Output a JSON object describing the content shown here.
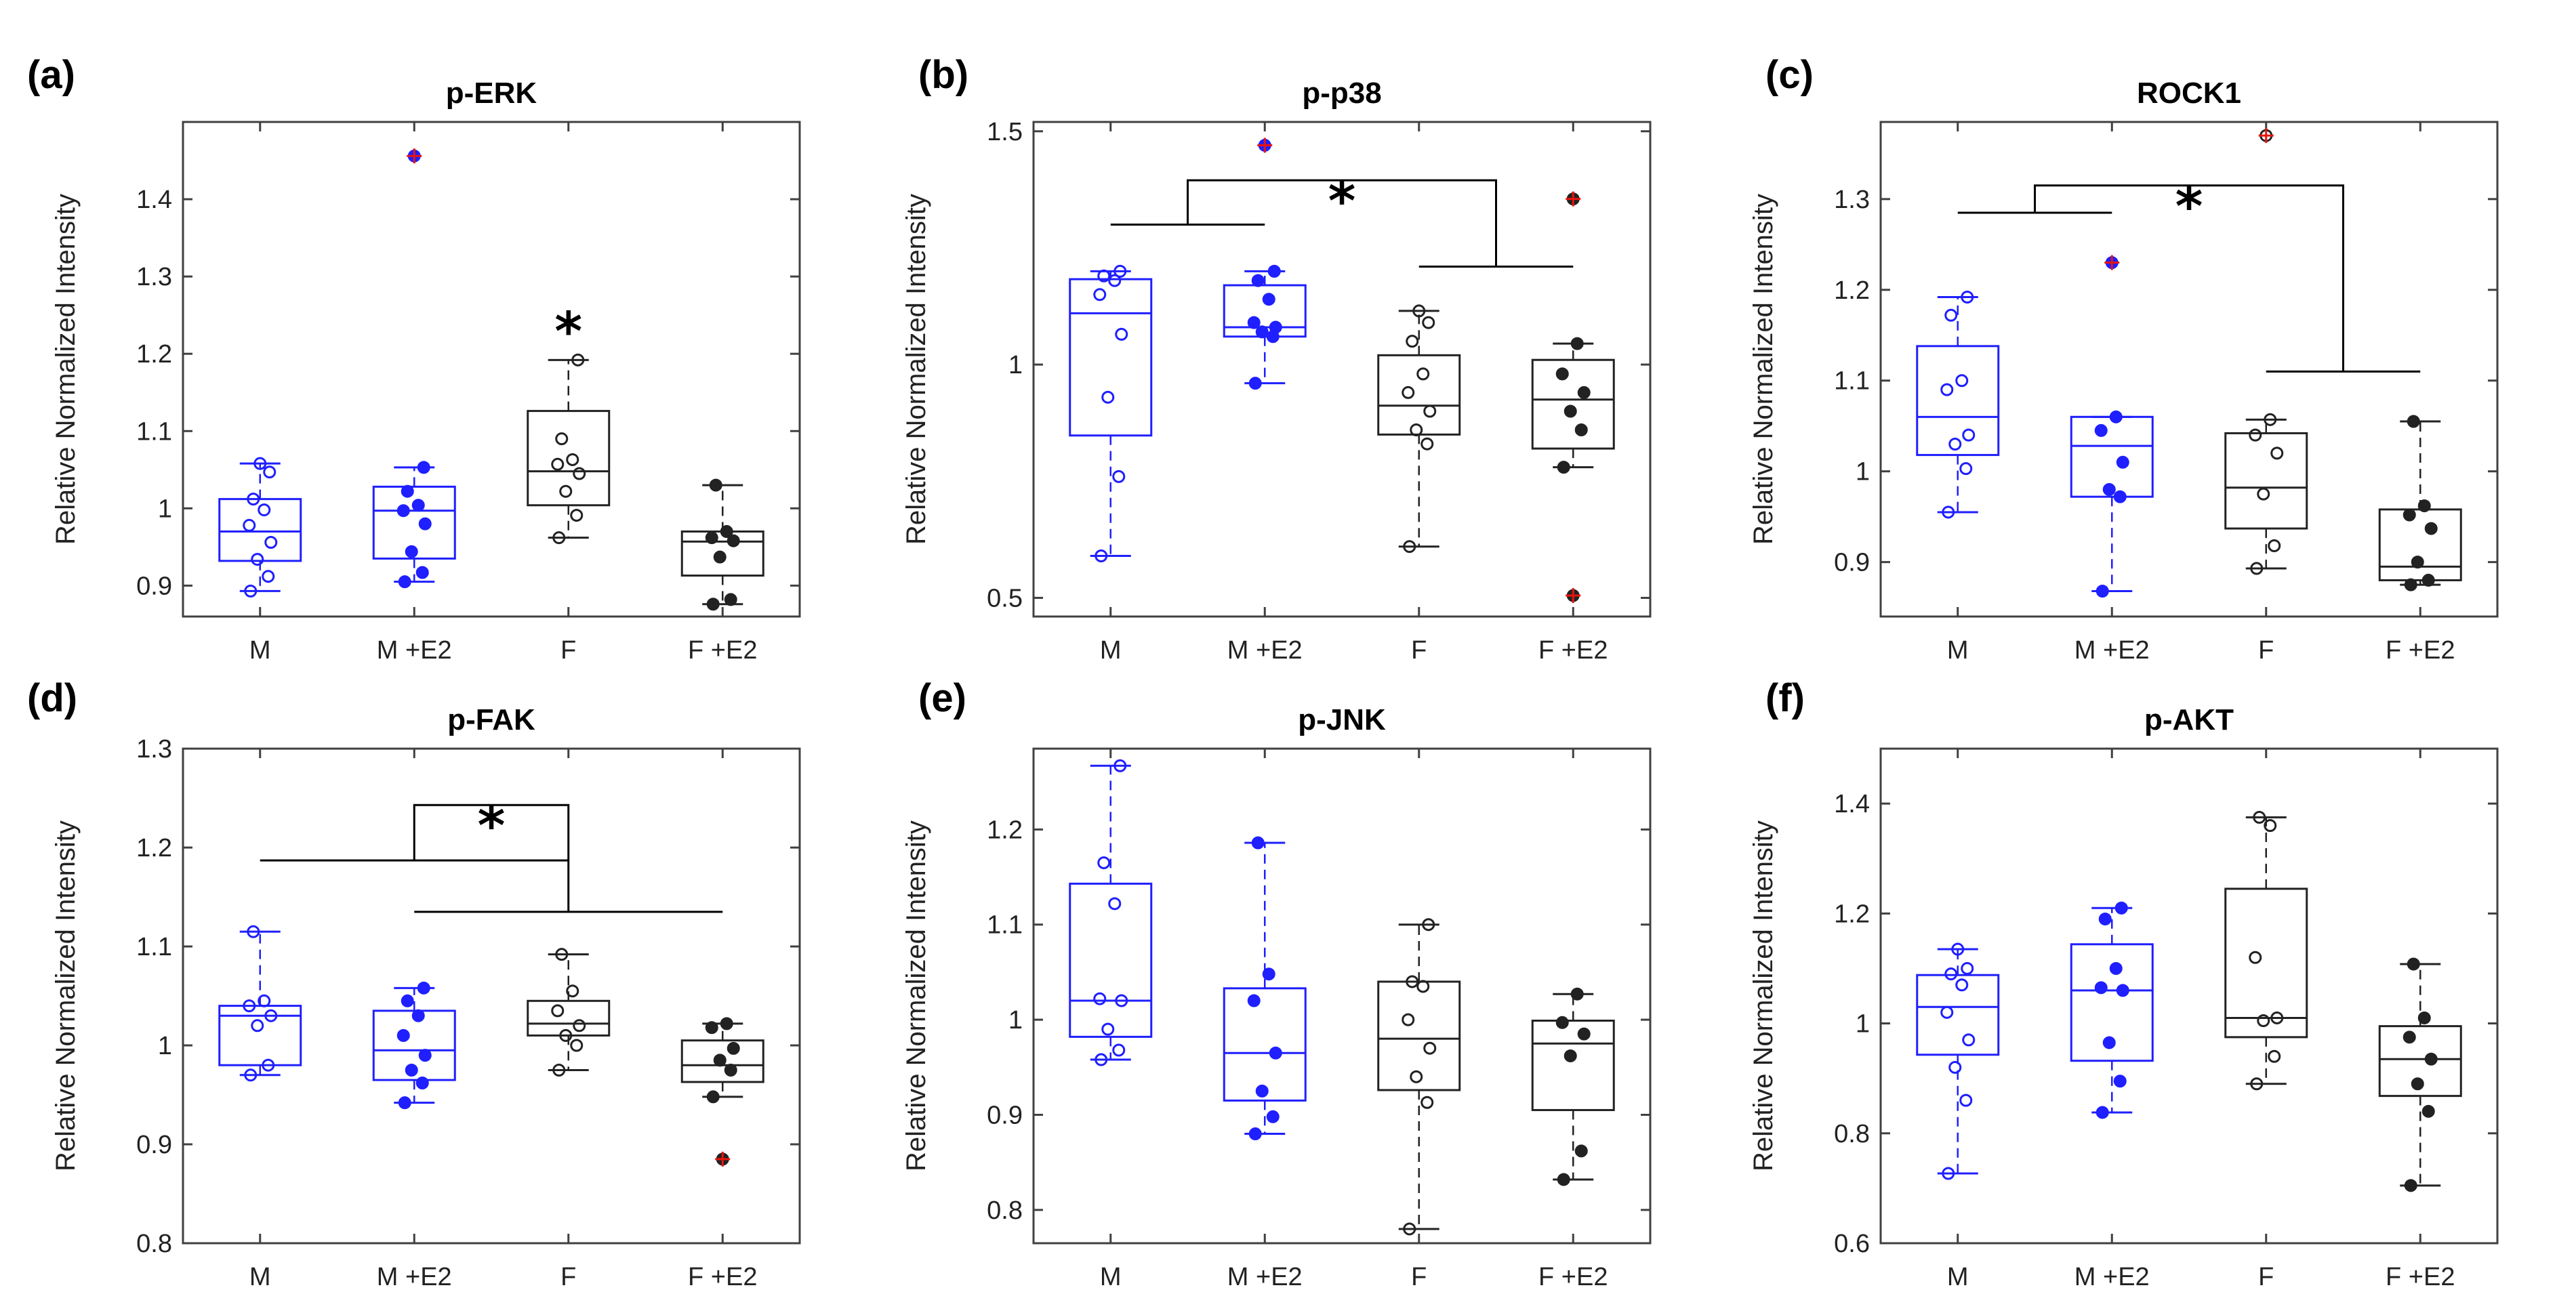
{
  "colors": {
    "male": "#1f1fff",
    "female": "#222222",
    "outlier": "#e8140c",
    "axis": "#404040"
  },
  "chart_data": [
    {
      "type": "box",
      "panel_label": "(a)",
      "title": "p-ERK",
      "ylabel": "Relative Normalized Intensity",
      "categories": [
        "M",
        "M +E2",
        "F",
        "F +E2"
      ],
      "ylim": [
        0.86,
        1.5
      ],
      "yticks": [
        0.9,
        1,
        1.1,
        1.2,
        1.3,
        1.4
      ],
      "ytick_labels": [
        "0.9",
        "1",
        "1.1",
        "1.2",
        "1.3",
        "1.4"
      ],
      "boxes": [
        {
          "q1": 0.932,
          "median": 0.97,
          "q3": 1.012,
          "whisker_low": 0.893,
          "whisker_high": 1.058,
          "points": [
            0.893,
            0.912,
            0.934,
            0.956,
            0.978,
            0.998,
            1.012,
            1.047,
            1.058
          ],
          "outliers": []
        },
        {
          "q1": 0.935,
          "median": 0.997,
          "q3": 1.028,
          "whisker_low": 0.905,
          "whisker_high": 1.053,
          "points": [
            0.905,
            0.917,
            0.944,
            0.98,
            0.997,
            1.004,
            1.022,
            1.053
          ],
          "outliers": [
            1.456
          ]
        },
        {
          "q1": 1.004,
          "median": 1.048,
          "q3": 1.126,
          "whisker_low": 0.962,
          "whisker_high": 1.192,
          "points": [
            0.962,
            0.991,
            1.022,
            1.045,
            1.057,
            1.063,
            1.09,
            1.192
          ],
          "outliers": []
        },
        {
          "q1": 0.913,
          "median": 0.957,
          "q3": 0.97,
          "whisker_low": 0.876,
          "whisker_high": 1.03,
          "points": [
            0.876,
            0.882,
            0.937,
            0.958,
            0.962,
            0.97,
            1.03
          ],
          "outliers": []
        }
      ],
      "significance": [
        {
          "type": "star",
          "text": "*",
          "x": 3,
          "y": 1.24
        }
      ]
    },
    {
      "type": "box",
      "panel_label": "(b)",
      "title": "p-p38",
      "ylabel": "Relative Normalized Intensity",
      "categories": [
        "M",
        "M +E2",
        "F",
        "F +E2"
      ],
      "ylim": [
        0.46,
        1.52
      ],
      "yticks": [
        0.5,
        1,
        1.5
      ],
      "ytick_labels": [
        "0.5",
        "1",
        "1.5"
      ],
      "boxes": [
        {
          "q1": 0.848,
          "median": 1.11,
          "q3": 1.183,
          "whisker_low": 0.59,
          "whisker_high": 1.2,
          "points": [
            0.59,
            0.76,
            0.93,
            1.065,
            1.15,
            1.18,
            1.19,
            1.2
          ],
          "outliers": []
        },
        {
          "q1": 1.06,
          "median": 1.08,
          "q3": 1.17,
          "whisker_low": 0.96,
          "whisker_high": 1.2,
          "points": [
            0.96,
            1.06,
            1.07,
            1.08,
            1.09,
            1.14,
            1.18,
            1.2
          ],
          "outliers": [
            1.47
          ]
        },
        {
          "q1": 0.85,
          "median": 0.912,
          "q3": 1.02,
          "whisker_low": 0.61,
          "whisker_high": 1.115,
          "points": [
            0.61,
            0.83,
            0.86,
            0.9,
            0.94,
            0.98,
            1.05,
            1.09,
            1.115
          ],
          "outliers": []
        },
        {
          "q1": 0.82,
          "median": 0.925,
          "q3": 1.01,
          "whisker_low": 0.78,
          "whisker_high": 1.045,
          "points": [
            0.78,
            0.86,
            0.9,
            0.94,
            0.98,
            1.045
          ],
          "outliers": [
            1.355,
            0.505
          ]
        }
      ],
      "significance": [
        {
          "type": "bracket",
          "groupA": [
            1,
            2
          ],
          "groupB": [
            3,
            4
          ],
          "yA": 1.3,
          "yB": 1.21,
          "ytop": 1.395,
          "text": "*"
        }
      ]
    },
    {
      "type": "box",
      "panel_label": "(c)",
      "title": "ROCK1",
      "ylabel": "Relative Normalized Intensity",
      "categories": [
        "M",
        "M +E2",
        "F",
        "F +E2"
      ],
      "ylim": [
        0.84,
        1.385
      ],
      "yticks": [
        0.9,
        1,
        1.1,
        1.2,
        1.3
      ],
      "ytick_labels": [
        "0.9",
        "1",
        "1.1",
        "1.2",
        "1.3"
      ],
      "boxes": [
        {
          "q1": 1.018,
          "median": 1.06,
          "q3": 1.138,
          "whisker_low": 0.955,
          "whisker_high": 1.192,
          "points": [
            0.955,
            1.003,
            1.03,
            1.04,
            1.09,
            1.1,
            1.172,
            1.192
          ],
          "outliers": []
        },
        {
          "q1": 0.972,
          "median": 1.028,
          "q3": 1.06,
          "whisker_low": 0.868,
          "whisker_high": 1.06,
          "points": [
            0.868,
            0.972,
            0.98,
            1.01,
            1.045,
            1.06
          ],
          "outliers": [
            1.23
          ]
        },
        {
          "q1": 0.937,
          "median": 0.982,
          "q3": 1.042,
          "whisker_low": 0.893,
          "whisker_high": 1.057,
          "points": [
            0.893,
            0.918,
            0.975,
            1.02,
            1.04,
            1.057
          ],
          "outliers": [
            1.37
          ]
        },
        {
          "q1": 0.88,
          "median": 0.895,
          "q3": 0.958,
          "whisker_low": 0.875,
          "whisker_high": 1.055,
          "points": [
            0.875,
            0.88,
            0.9,
            0.937,
            0.952,
            0.962,
            1.055
          ],
          "outliers": []
        }
      ],
      "significance": [
        {
          "type": "bracket",
          "groupA": [
            1,
            2
          ],
          "groupB": [
            3,
            4
          ],
          "yA": 1.285,
          "yB": 1.11,
          "ytop": 1.315,
          "text": "*"
        }
      ]
    },
    {
      "type": "box",
      "panel_label": "(d)",
      "title": "p-FAK",
      "ylabel": "Relative Normalized Intensity",
      "categories": [
        "M",
        "M +E2",
        "F",
        "F +E2"
      ],
      "ylim": [
        0.8,
        1.3
      ],
      "yticks": [
        0.8,
        0.9,
        1,
        1.1,
        1.2,
        1.3
      ],
      "ytick_labels": [
        "0.8",
        "0.9",
        "1",
        "1.1",
        "1.2",
        "1.3"
      ],
      "boxes": [
        {
          "q1": 0.98,
          "median": 1.03,
          "q3": 1.04,
          "whisker_low": 0.97,
          "whisker_high": 1.115,
          "points": [
            0.97,
            0.98,
            1.02,
            1.03,
            1.04,
            1.045,
            1.115
          ],
          "outliers": []
        },
        {
          "q1": 0.965,
          "median": 0.995,
          "q3": 1.035,
          "whisker_low": 0.942,
          "whisker_high": 1.058,
          "points": [
            0.942,
            0.962,
            0.975,
            0.99,
            1.01,
            1.03,
            1.045,
            1.058
          ],
          "outliers": []
        },
        {
          "q1": 1.01,
          "median": 1.022,
          "q3": 1.045,
          "whisker_low": 0.975,
          "whisker_high": 1.092,
          "points": [
            0.975,
            1.0,
            1.01,
            1.02,
            1.035,
            1.055,
            1.092
          ],
          "outliers": []
        },
        {
          "q1": 0.963,
          "median": 0.98,
          "q3": 1.005,
          "whisker_low": 0.948,
          "whisker_high": 1.022,
          "points": [
            0.948,
            0.975,
            0.985,
            0.997,
            1.018,
            1.022
          ],
          "outliers": [
            0.885
          ]
        }
      ],
      "significance": [
        {
          "type": "bracket",
          "groupA": [
            1,
            3
          ],
          "groupB": [
            2,
            4
          ],
          "yA": 1.187,
          "yB": 1.135,
          "ytop": 1.243,
          "text": "*"
        }
      ]
    },
    {
      "type": "box",
      "panel_label": "(e)",
      "title": "p-JNK",
      "ylabel": "Relative Normalized Intensity",
      "categories": [
        "M",
        "M +E2",
        "F",
        "F +E2"
      ],
      "ylim": [
        0.765,
        1.285
      ],
      "yticks": [
        0.8,
        0.9,
        1,
        1.1,
        1.2
      ],
      "ytick_labels": [
        "0.8",
        "0.9",
        "1",
        "1.1",
        "1.2"
      ],
      "boxes": [
        {
          "q1": 0.982,
          "median": 1.02,
          "q3": 1.143,
          "whisker_low": 0.958,
          "whisker_high": 1.267,
          "points": [
            0.958,
            0.968,
            0.99,
            1.02,
            1.022,
            1.122,
            1.165,
            1.267
          ],
          "outliers": []
        },
        {
          "q1": 0.915,
          "median": 0.965,
          "q3": 1.033,
          "whisker_low": 0.88,
          "whisker_high": 1.186,
          "points": [
            0.88,
            0.898,
            0.925,
            0.965,
            1.02,
            1.048,
            1.186
          ],
          "outliers": []
        },
        {
          "q1": 0.926,
          "median": 0.98,
          "q3": 1.04,
          "whisker_low": 0.78,
          "whisker_high": 1.1,
          "points": [
            0.78,
            0.913,
            0.94,
            0.97,
            1.0,
            1.035,
            1.04,
            1.1
          ],
          "outliers": []
        },
        {
          "q1": 0.905,
          "median": 0.975,
          "q3": 0.999,
          "whisker_low": 0.832,
          "whisker_high": 1.027,
          "points": [
            0.832,
            0.862,
            0.962,
            0.985,
            0.997,
            1.027
          ],
          "outliers": []
        }
      ],
      "significance": []
    },
    {
      "type": "box",
      "panel_label": "(f)",
      "title": "p-AKT",
      "ylabel": "Relative Normalized Intensity",
      "categories": [
        "M",
        "M +E2",
        "F",
        "F +E2"
      ],
      "ylim": [
        0.6,
        1.5
      ],
      "yticks": [
        0.6,
        0.8,
        1,
        1.2,
        1.4
      ],
      "ytick_labels": [
        "0.6",
        "0.8",
        "1",
        "1.2",
        "1.4"
      ],
      "boxes": [
        {
          "q1": 0.943,
          "median": 1.03,
          "q3": 1.088,
          "whisker_low": 0.727,
          "whisker_high": 1.135,
          "points": [
            0.727,
            0.86,
            0.92,
            0.97,
            1.02,
            1.07,
            1.09,
            1.1,
            1.135
          ],
          "outliers": []
        },
        {
          "q1": 0.932,
          "median": 1.06,
          "q3": 1.144,
          "whisker_low": 0.838,
          "whisker_high": 1.21,
          "points": [
            0.838,
            0.895,
            0.965,
            1.06,
            1.065,
            1.1,
            1.19,
            1.21
          ],
          "outliers": []
        },
        {
          "q1": 0.975,
          "median": 1.01,
          "q3": 1.245,
          "whisker_low": 0.89,
          "whisker_high": 1.375,
          "points": [
            0.89,
            0.94,
            1.005,
            1.01,
            1.12,
            1.36,
            1.375
          ],
          "outliers": []
        },
        {
          "q1": 0.868,
          "median": 0.935,
          "q3": 0.995,
          "whisker_low": 0.705,
          "whisker_high": 1.108,
          "points": [
            0.705,
            0.84,
            0.89,
            0.935,
            0.975,
            1.01,
            1.108
          ],
          "outliers": []
        }
      ],
      "significance": []
    }
  ]
}
